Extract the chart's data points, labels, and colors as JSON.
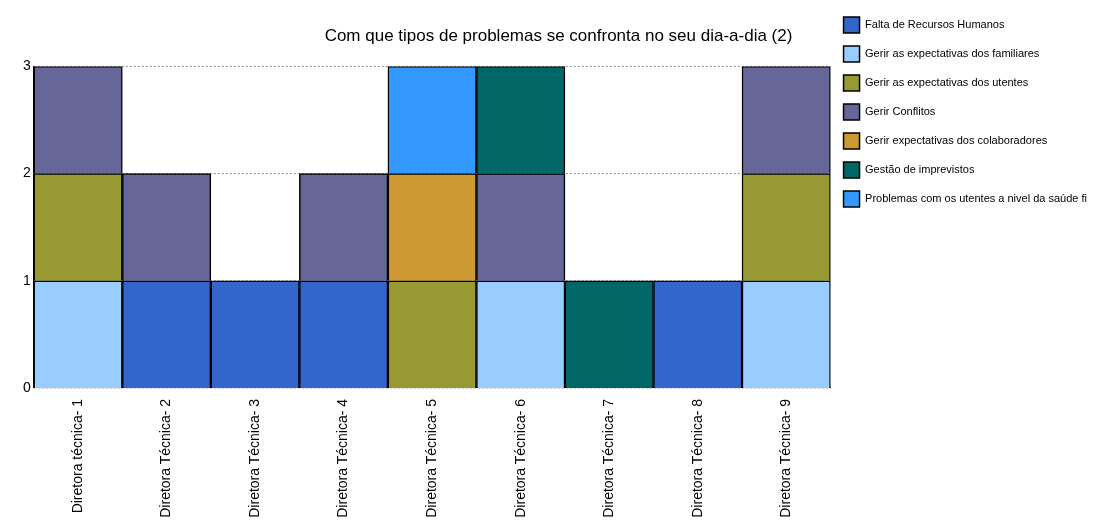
{
  "chart_data": {
    "type": "bar",
    "title": "Com que tipos de problemas se confronta no seu dia-a-dia (2)",
    "stacked": true,
    "categories": [
      "Diretora técnica- 1",
      "Diretora Técnica- 2",
      "Diretora Técnica- 3",
      "Diretora Técnica- 4",
      "Diretora Técnica- 5",
      "Diretora Técnica- 6",
      "Diretora Técnica- 7",
      "Diretora Técnica- 8",
      "Diretora Técnica- 9"
    ],
    "series": [
      {
        "name": "Falta de Recursos Humanos",
        "color": "#3366cc",
        "values": [
          null,
          1,
          1,
          1,
          null,
          null,
          null,
          1,
          null
        ]
      },
      {
        "name": "Gerir as expectativas dos familiares",
        "color": "#99ccff",
        "values": [
          1,
          null,
          null,
          null,
          null,
          1,
          null,
          null,
          1
        ]
      },
      {
        "name": "Gerir as expectativas dos utentes",
        "color": "#999933",
        "values": [
          1,
          null,
          null,
          null,
          1,
          null,
          null,
          null,
          1
        ]
      },
      {
        "name": "Gerir Conflitos",
        "color": "#666699",
        "values": [
          1,
          1,
          null,
          1,
          null,
          1,
          null,
          null,
          1
        ]
      },
      {
        "name": "Gerir expectativas dos colaboradores",
        "color": "#cc9933",
        "values": [
          null,
          null,
          null,
          null,
          1,
          null,
          null,
          null,
          null
        ]
      },
      {
        "name": "Gestão de imprevistos",
        "color": "#006666",
        "values": [
          null,
          null,
          null,
          null,
          null,
          1,
          1,
          null,
          null
        ]
      },
      {
        "name": "Problemas com os utentes a nivel da saúde fi",
        "color": "#3399ff",
        "values": [
          null,
          null,
          null,
          null,
          1,
          null,
          null,
          null,
          null
        ]
      }
    ],
    "ylim": [
      0,
      3
    ],
    "yticks": [
      0,
      1,
      2,
      3
    ],
    "grid": "y",
    "legend": "right"
  }
}
